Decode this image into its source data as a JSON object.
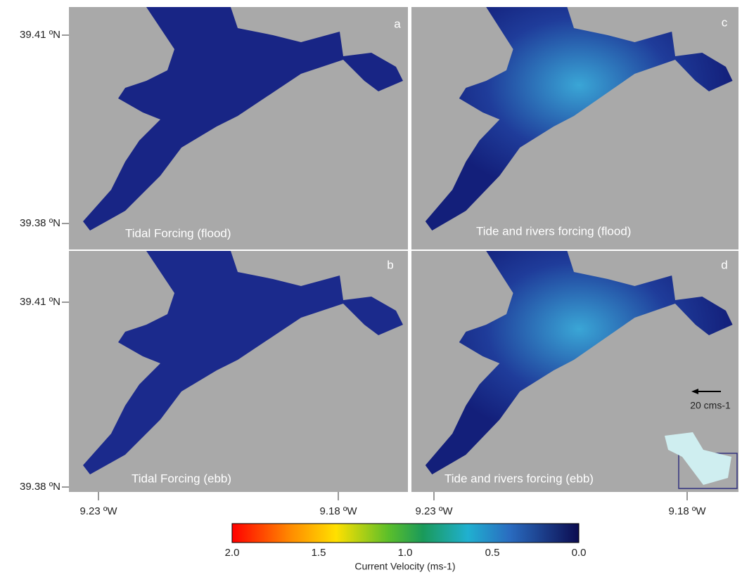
{
  "panels": [
    {
      "letter": "a",
      "caption": "Tidal Forcing (flood)"
    },
    {
      "letter": "c",
      "caption": "Tide and rivers forcing (flood)"
    },
    {
      "letter": "b",
      "caption": "Tidal Forcing (ebb)"
    },
    {
      "letter": "d",
      "caption": "Tide and rivers forcing (ebb)"
    }
  ],
  "y_axis_labels": [
    "39.41 ºN",
    "39.38 ºN",
    "39.41 ºN",
    "39.38 ºN"
  ],
  "x_axis_labels": [
    "9.23 ºW",
    "9.18 ºW",
    "9.23 ºW",
    "9.18 ºW"
  ],
  "colorbar": {
    "ticks": [
      "2.0",
      "1.5",
      "1.0",
      "0.5",
      "0.0"
    ],
    "title": "Current Velocity (ms-1)"
  },
  "scale_arrow": {
    "label": "20 cms-1"
  }
}
